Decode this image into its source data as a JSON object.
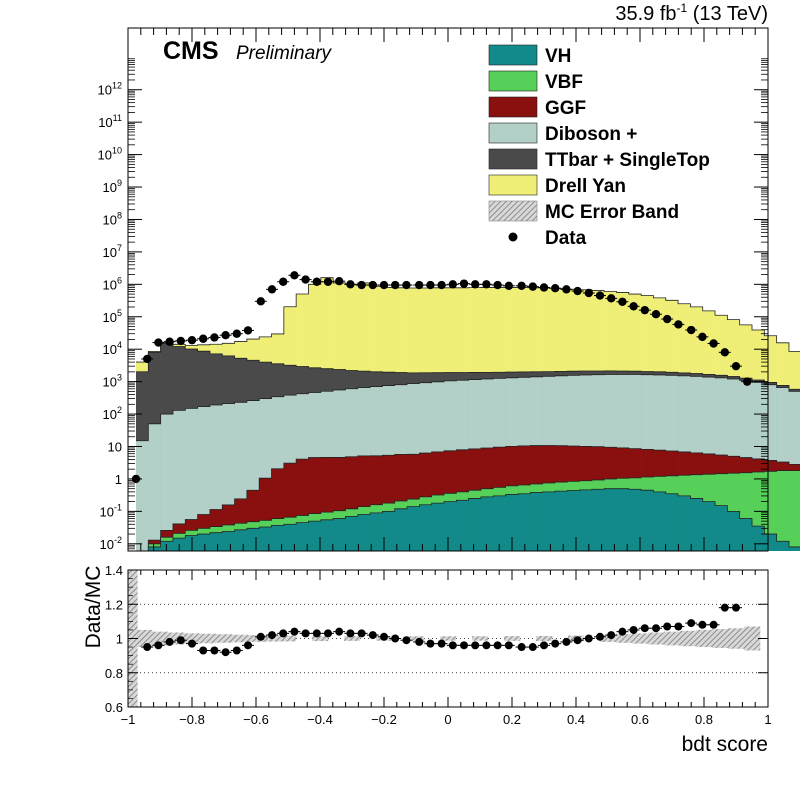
{
  "lumi_label": {
    "main": "35.9 fb",
    "sup": "-1",
    "tail": " (13 TeV)"
  },
  "cms_label": "CMS",
  "prelim_label": "Preliminary",
  "colors": {
    "VH": "#138a8a",
    "VBF": "#57d05a",
    "GGF": "#8a1010",
    "Diboson": "#b2cfc8",
    "TTbar": "#4a4a4a",
    "DY": "#efef78",
    "data": "#000000",
    "band": "#9a9a9a"
  },
  "chart_data": [
    {
      "type": "area",
      "name": "main-stack",
      "stacked": true,
      "log_y": true,
      "xlim": [
        -1,
        1
      ],
      "ylim": [
        0.006,
        80000000000000
      ],
      "y_ticks": [
        {
          "v": 0.01,
          "base": "10",
          "exp": "-2"
        },
        {
          "v": 0.1,
          "base": "10",
          "exp": "-1"
        },
        {
          "v": 1,
          "base": "1",
          "exp": ""
        },
        {
          "v": 10,
          "base": "10",
          "exp": ""
        },
        {
          "v": 100,
          "base": "10",
          "exp": "2"
        },
        {
          "v": 1000,
          "base": "10",
          "exp": "3"
        },
        {
          "v": 10000,
          "base": "10",
          "exp": "4"
        },
        {
          "v": 100000,
          "base": "10",
          "exp": "5"
        },
        {
          "v": 1000000,
          "base": "10",
          "exp": "6"
        },
        {
          "v": 10000000,
          "base": "10",
          "exp": "7"
        },
        {
          "v": 100000000,
          "base": "10",
          "exp": "8"
        },
        {
          "v": 1000000000,
          "base": "10",
          "exp": "9"
        },
        {
          "v": 10000000000,
          "base": "10",
          "exp": "10"
        },
        {
          "v": 100000000000,
          "base": "10",
          "exp": "11"
        },
        {
          "v": 1000000000000,
          "base": "10",
          "exp": "12"
        }
      ],
      "bin_edges_start": -0.975,
      "bin_width": 0.0385,
      "legend": [
        {
          "label": "VH",
          "kind": "fill",
          "key": "VH"
        },
        {
          "label": "VBF",
          "kind": "fill",
          "key": "VBF"
        },
        {
          "label": "GGF",
          "kind": "fill",
          "key": "GGF"
        },
        {
          "label": "Diboson +",
          "kind": "fill",
          "key": "Diboson"
        },
        {
          "label": "TTbar + SingleTop",
          "kind": "fill",
          "key": "TTbar"
        },
        {
          "label": "Drell Yan",
          "kind": "fill",
          "key": "DY"
        },
        {
          "label": "MC Error Band",
          "kind": "hatch",
          "key": "band"
        },
        {
          "label": "Data",
          "kind": "marker",
          "key": "data"
        }
      ],
      "series": [
        {
          "name": "VH",
          "key": "VH",
          "values": [
            0.004,
            0.008,
            0.012,
            0.015,
            0.018,
            0.02,
            0.022,
            0.024,
            0.027,
            0.03,
            0.033,
            0.037,
            0.04,
            0.045,
            0.05,
            0.055,
            0.06,
            0.07,
            0.08,
            0.09,
            0.1,
            0.12,
            0.14,
            0.16,
            0.18,
            0.2,
            0.22,
            0.25,
            0.28,
            0.3,
            0.33,
            0.35,
            0.38,
            0.4,
            0.42,
            0.44,
            0.46,
            0.48,
            0.5,
            0.5,
            0.48,
            0.45,
            0.4,
            0.35,
            0.3,
            0.25,
            0.2,
            0.15,
            0.1,
            0.06,
            0.035,
            0.02,
            0.012,
            0.008,
            0.005,
            0.003,
            0.002,
            0.001
          ]
        },
        {
          "name": "VBF",
          "key": "VBF",
          "values": [
            0.001,
            0.002,
            0.004,
            0.006,
            0.008,
            0.01,
            0.012,
            0.014,
            0.016,
            0.018,
            0.02,
            0.023,
            0.026,
            0.03,
            0.035,
            0.04,
            0.045,
            0.05,
            0.06,
            0.07,
            0.08,
            0.09,
            0.1,
            0.12,
            0.14,
            0.16,
            0.18,
            0.2,
            0.22,
            0.25,
            0.28,
            0.3,
            0.32,
            0.35,
            0.38,
            0.4,
            0.42,
            0.45,
            0.5,
            0.55,
            0.6,
            0.7,
            0.8,
            0.9,
            1.0,
            1.1,
            1.2,
            1.3,
            1.4,
            1.5,
            1.6,
            1.7,
            1.8,
            1.8,
            1.7,
            1.5,
            1.2,
            0.8
          ]
        },
        {
          "name": "GGF",
          "key": "GGF",
          "values": [
            0.001,
            0.003,
            0.01,
            0.02,
            0.03,
            0.05,
            0.08,
            0.12,
            0.2,
            0.4,
            1.0,
            2.0,
            3.0,
            4.0,
            4.5,
            4.5,
            4.5,
            4.7,
            5.0,
            5.0,
            5.2,
            5.5,
            5.5,
            6.0,
            6.5,
            7.0,
            7.5,
            8.0,
            8.5,
            9.0,
            9.5,
            9.8,
            10.0,
            10.0,
            9.8,
            9.5,
            9.2,
            9.0,
            8.5,
            8.0,
            7.5,
            7.0,
            6.5,
            6.0,
            5.5,
            5.0,
            4.5,
            4.0,
            3.5,
            3.0,
            2.5,
            2.0,
            1.5,
            1.0,
            0.7,
            0.4,
            0.2,
            0.1
          ]
        },
        {
          "name": "Diboson +",
          "key": "Diboson",
          "values": [
            15,
            50,
            100,
            130,
            150,
            170,
            190,
            210,
            230,
            260,
            300,
            340,
            380,
            420,
            460,
            500,
            550,
            600,
            650,
            700,
            750,
            800,
            860,
            920,
            980,
            1050,
            1100,
            1150,
            1200,
            1250,
            1300,
            1350,
            1400,
            1450,
            1500,
            1550,
            1600,
            1620,
            1650,
            1650,
            1650,
            1620,
            1600,
            1550,
            1500,
            1450,
            1380,
            1300,
            1200,
            1080,
            950,
            800,
            650,
            500,
            350,
            220,
            80,
            10
          ]
        },
        {
          "name": "TTbar + SingleTop",
          "key": "TTbar",
          "values": [
            2000,
            8000,
            15000,
            12000,
            10000,
            8500,
            7000,
            6000,
            5000,
            4300,
            3700,
            3200,
            2800,
            2500,
            2200,
            2000,
            1800,
            1600,
            1450,
            1300,
            1200,
            1100,
            1000,
            950,
            900,
            850,
            800,
            760,
            720,
            690,
            660,
            630,
            600,
            580,
            560,
            540,
            520,
            500,
            480,
            460,
            440,
            420,
            400,
            380,
            350,
            320,
            290,
            260,
            230,
            200,
            170,
            140,
            110,
            80,
            55,
            35,
            20,
            8
          ]
        },
        {
          "name": "Drell Yan",
          "key": "DY",
          "values": [
            2000,
            500,
            700,
            2000,
            3000,
            5000,
            7000,
            9000,
            12000,
            16000,
            20000,
            26000,
            200000,
            500000,
            1000000,
            1600000,
            1100000,
            1000000,
            1100000,
            850000,
            800000,
            780000,
            770000,
            770000,
            780000,
            780000,
            780000,
            790000,
            800000,
            800000,
            800000,
            800000,
            780000,
            760000,
            740000,
            700000,
            680000,
            640000,
            600000,
            560000,
            500000,
            450000,
            380000,
            320000,
            250000,
            200000,
            150000,
            110000,
            80000,
            55000,
            38000,
            25000,
            15000,
            8000,
            3500,
            1200,
            200,
            8
          ]
        }
      ],
      "data_points": {
        "name": "Data",
        "x": [
          -0.975,
          -0.94,
          -0.905,
          -0.87,
          -0.835,
          -0.8,
          -0.765,
          -0.73,
          -0.695,
          -0.66,
          -0.625,
          -0.585,
          -0.55,
          -0.515,
          -0.48,
          -0.445,
          -0.41,
          -0.375,
          -0.34,
          -0.305,
          -0.27,
          -0.235,
          -0.2,
          -0.165,
          -0.13,
          -0.09,
          -0.055,
          -0.02,
          0.015,
          0.05,
          0.085,
          0.12,
          0.155,
          0.19,
          0.23,
          0.265,
          0.3,
          0.335,
          0.37,
          0.405,
          0.44,
          0.475,
          0.51,
          0.545,
          0.58,
          0.615,
          0.65,
          0.685,
          0.72,
          0.76,
          0.795,
          0.83,
          0.865,
          0.9,
          0.935
        ],
        "y": [
          1,
          5000,
          16000,
          17000,
          18000,
          19000,
          21000,
          23000,
          27000,
          30000,
          38000,
          300000,
          700000,
          1200000,
          1900000,
          1400000,
          1200000,
          1200000,
          1250000,
          1000000,
          950000,
          950000,
          950000,
          950000,
          950000,
          950000,
          950000,
          950000,
          1000000,
          1050000,
          1000000,
          1000000,
          950000,
          900000,
          900000,
          850000,
          800000,
          760000,
          700000,
          620000,
          540000,
          450000,
          370000,
          290000,
          210000,
          160000,
          120000,
          85000,
          58000,
          39000,
          24000,
          15000,
          8000,
          3000,
          1000
        ]
      }
    },
    {
      "type": "scatter",
      "name": "ratio",
      "xlim": [
        -1,
        1
      ],
      "ylim": [
        0.6,
        1.4
      ],
      "xlabel": "bdt score",
      "ylabel": "Data/MC",
      "x_ticks": [
        "−1",
        "−0.8",
        "−0.6",
        "−0.4",
        "−0.2",
        "0",
        "0.2",
        "0.4",
        "0.6",
        "0.8",
        "1"
      ],
      "y_ticks": [
        "0.6",
        "0.8",
        "1",
        "1.2",
        "1.4"
      ],
      "grid": true,
      "x": [
        -0.94,
        -0.905,
        -0.87,
        -0.835,
        -0.8,
        -0.765,
        -0.73,
        -0.695,
        -0.66,
        -0.625,
        -0.585,
        -0.55,
        -0.515,
        -0.48,
        -0.445,
        -0.41,
        -0.375,
        -0.34,
        -0.305,
        -0.27,
        -0.235,
        -0.2,
        -0.165,
        -0.13,
        -0.09,
        -0.055,
        -0.02,
        0.015,
        0.05,
        0.085,
        0.12,
        0.155,
        0.19,
        0.23,
        0.265,
        0.3,
        0.335,
        0.37,
        0.405,
        0.44,
        0.475,
        0.51,
        0.545,
        0.58,
        0.615,
        0.65,
        0.685,
        0.72,
        0.76,
        0.795,
        0.83,
        0.865,
        0.9
      ],
      "y": [
        0.95,
        0.96,
        0.98,
        0.99,
        0.97,
        0.93,
        0.93,
        0.92,
        0.93,
        0.96,
        1.01,
        1.02,
        1.03,
        1.04,
        1.03,
        1.03,
        1.03,
        1.04,
        1.03,
        1.03,
        1.02,
        1.01,
        1.0,
        0.99,
        0.98,
        0.97,
        0.97,
        0.96,
        0.96,
        0.96,
        0.96,
        0.96,
        0.96,
        0.95,
        0.95,
        0.96,
        0.97,
        0.98,
        0.99,
        1.0,
        1.01,
        1.02,
        1.04,
        1.05,
        1.06,
        1.06,
        1.07,
        1.07,
        1.09,
        1.08,
        1.08,
        1.18,
        1.18
      ],
      "band_x": [
        -0.95,
        -0.9,
        -0.85,
        -0.8,
        -0.75,
        -0.7,
        -0.65,
        -0.6,
        -0.55,
        -0.5,
        -0.4,
        -0.3,
        -0.2,
        -0.1,
        0.0,
        0.1,
        0.2,
        0.3,
        0.4,
        0.5,
        0.55,
        0.6,
        0.65,
        0.7,
        0.75,
        0.8,
        0.85,
        0.9,
        0.95
      ],
      "band_half": [
        0.05,
        0.04,
        0.035,
        0.03,
        0.028,
        0.025,
        0.022,
        0.02,
        0.018,
        0.017,
        0.015,
        0.014,
        0.013,
        0.013,
        0.013,
        0.013,
        0.014,
        0.015,
        0.017,
        0.02,
        0.025,
        0.03,
        0.035,
        0.04,
        0.045,
        0.05,
        0.055,
        0.06,
        0.07
      ]
    }
  ]
}
